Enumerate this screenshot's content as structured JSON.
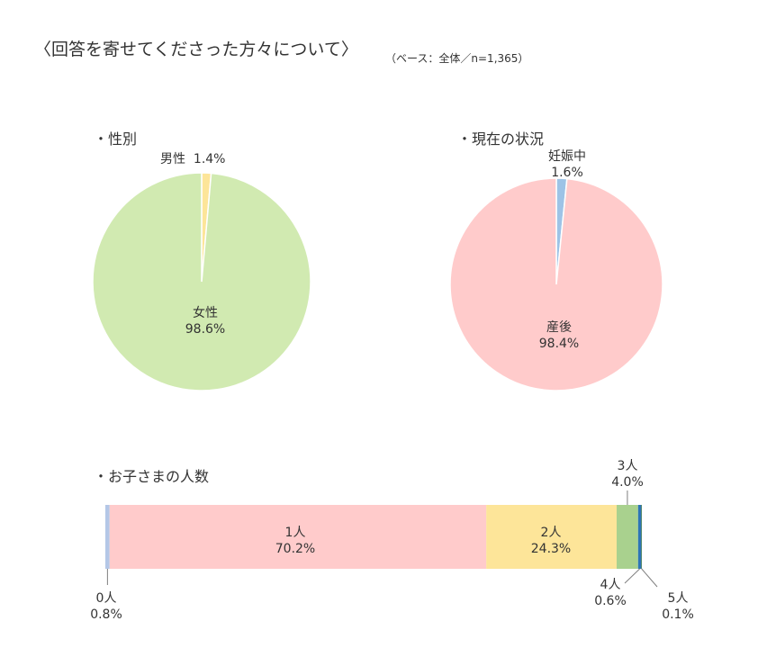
{
  "header": {
    "title": "〈回答を寄せてくださった方々について〉",
    "base_note": "（ベース：全体／n=1,365）"
  },
  "chart_data": [
    {
      "type": "pie",
      "title": "・性別",
      "slices": [
        {
          "label": "女性",
          "value_label": "98.6%",
          "value": 98.6,
          "color": "#d1eab1"
        },
        {
          "label": "男性",
          "value_label": "1.4%",
          "value": 1.4,
          "color": "#fde599"
        }
      ]
    },
    {
      "type": "pie",
      "title": "・現在の状況",
      "slices": [
        {
          "label": "産後",
          "value_label": "98.4%",
          "value": 98.4,
          "color": "#ffcbcb"
        },
        {
          "label": "妊娠中",
          "value_label": "1.6%",
          "value": 1.6,
          "color": "#9dc3e6"
        }
      ]
    },
    {
      "type": "bar",
      "orientation": "horizontal-stacked-100",
      "title": "・お子さまの人数",
      "segments": [
        {
          "label": "0人",
          "value_label": "0.8%",
          "value": 0.8,
          "color": "#b4c7e7"
        },
        {
          "label": "1人",
          "value_label": "70.2%",
          "value": 70.2,
          "color": "#ffcbcb"
        },
        {
          "label": "2人",
          "value_label": "24.3%",
          "value": 24.3,
          "color": "#fde599"
        },
        {
          "label": "3人",
          "value_label": "4.0%",
          "value": 4.0,
          "color": "#a9d18e"
        },
        {
          "label": "4人",
          "value_label": "0.6%",
          "value": 0.6,
          "color": "#2e75b6"
        },
        {
          "label": "5人",
          "value_label": "0.1%",
          "value": 0.1,
          "color": "#548235"
        }
      ]
    }
  ]
}
